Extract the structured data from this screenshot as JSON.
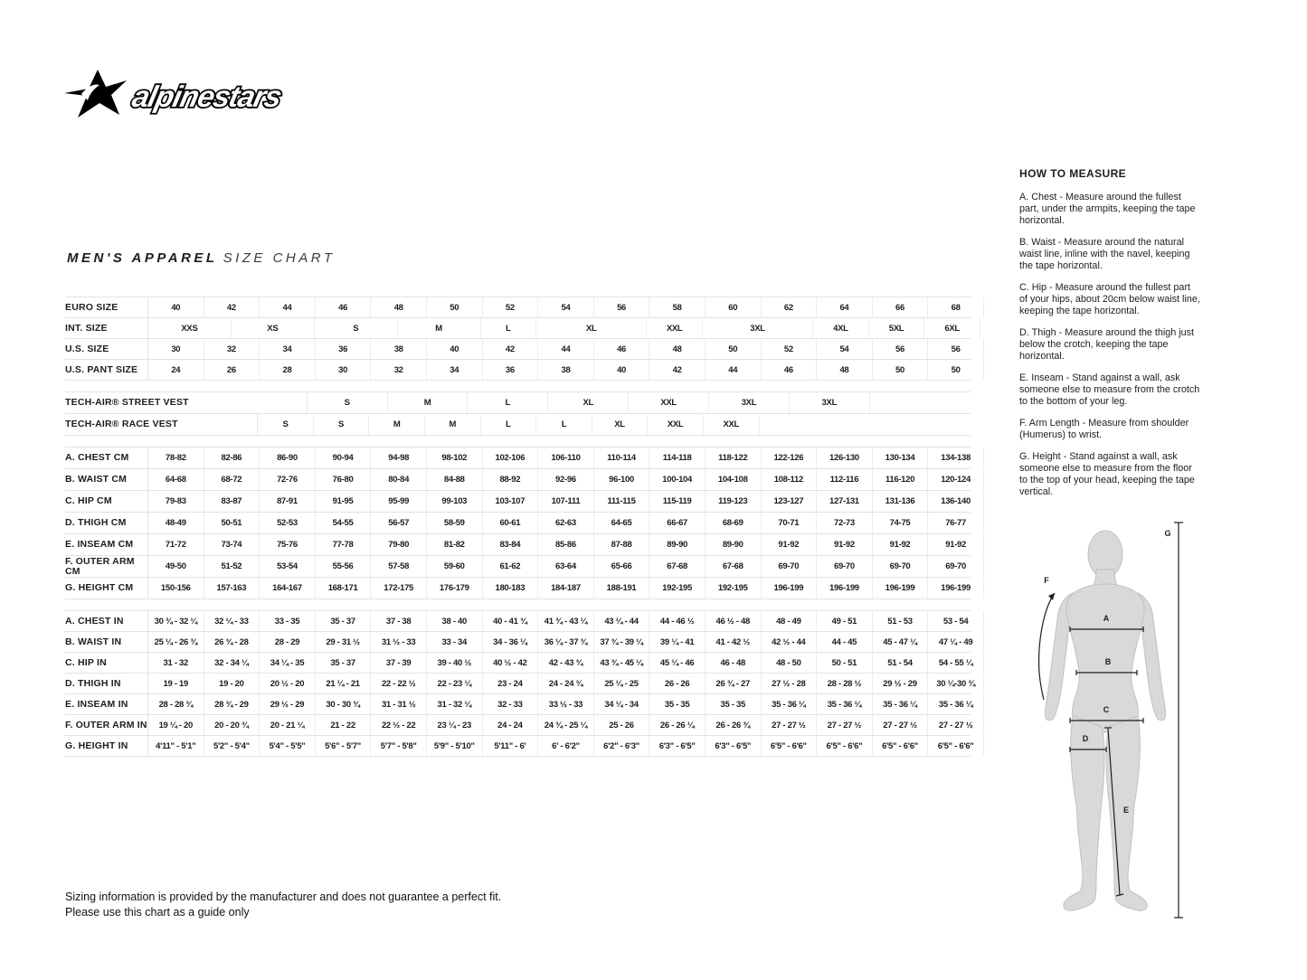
{
  "brand": {
    "name": "alpinestars"
  },
  "title": {
    "primary": "MEN'S APPAREL",
    "secondary": "SIZE CHART"
  },
  "size_table": {
    "groups": [
      {
        "rows": [
          {
            "label": "EURO SIZE",
            "cells": [
              "40",
              "42",
              "44",
              "46",
              "48",
              "50",
              "52",
              "54",
              "56",
              "58",
              "60",
              "62",
              "64",
              "66",
              "68"
            ]
          },
          {
            "label": "INT. SIZE",
            "cells": [
              {
                "t": "XXS",
                "span": 1.5
              },
              {
                "t": "XS",
                "span": 1.5
              },
              {
                "t": "S",
                "span": 1.5
              },
              {
                "t": "M",
                "span": 1.5
              },
              {
                "t": "L",
                "span": 1
              },
              {
                "t": "XL",
                "span": 2
              },
              {
                "t": "XXL",
                "span": 1
              },
              {
                "t": "3XL",
                "span": 2
              },
              {
                "t": "4XL",
                "span": 1
              },
              {
                "t": "5XL",
                "span": 1
              },
              {
                "t": "6XL",
                "span": 1
              }
            ]
          },
          {
            "label": "U.S. SIZE",
            "cells": [
              "30",
              "32",
              "34",
              "36",
              "38",
              "40",
              "42",
              "44",
              "46",
              "48",
              "50",
              "52",
              "54",
              "56",
              "56"
            ]
          },
          {
            "label": "U.S. PANT SIZE",
            "cells": [
              "24",
              "26",
              "28",
              "30",
              "32",
              "34",
              "36",
              "38",
              "40",
              "42",
              "44",
              "46",
              "48",
              "50",
              "50"
            ]
          }
        ]
      },
      {
        "rows": [
          {
            "label": "TECH-AIR® STREET VEST",
            "offset": 2.9,
            "span": 1.45,
            "cells": [
              "S",
              "M",
              "L",
              "XL",
              "XXL",
              "3XL",
              "3XL"
            ]
          },
          {
            "label": "TECH-AIR® RACE VEST",
            "offset": 2,
            "cells": [
              "S",
              "S",
              "M",
              "M",
              "L",
              "L",
              "XL",
              "XXL",
              "XXL"
            ]
          }
        ]
      },
      {
        "rows": [
          {
            "label": "A. CHEST CM",
            "cells": [
              "78-82",
              "82-86",
              "86-90",
              "90-94",
              "94-98",
              "98-102",
              "102-106",
              "106-110",
              "110-114",
              "114-118",
              "118-122",
              "122-126",
              "126-130",
              "130-134",
              "134-138"
            ]
          },
          {
            "label": "B. WAIST CM",
            "cells": [
              "64-68",
              "68-72",
              "72-76",
              "76-80",
              "80-84",
              "84-88",
              "88-92",
              "92-96",
              "96-100",
              "100-104",
              "104-108",
              "108-112",
              "112-116",
              "116-120",
              "120-124"
            ]
          },
          {
            "label": "C. HIP CM",
            "cells": [
              "79-83",
              "83-87",
              "87-91",
              "91-95",
              "95-99",
              "99-103",
              "103-107",
              "107-111",
              "111-115",
              "115-119",
              "119-123",
              "123-127",
              "127-131",
              "131-136",
              "136-140"
            ]
          },
          {
            "label": "D. THIGH CM",
            "cells": [
              "48-49",
              "50-51",
              "52-53",
              "54-55",
              "56-57",
              "58-59",
              "60-61",
              "62-63",
              "64-65",
              "66-67",
              "68-69",
              "70-71",
              "72-73",
              "74-75",
              "76-77"
            ]
          },
          {
            "label": "E. INSEAM CM",
            "cells": [
              "71-72",
              "73-74",
              "75-76",
              "77-78",
              "79-80",
              "81-82",
              "83-84",
              "85-86",
              "87-88",
              "89-90",
              "89-90",
              "91-92",
              "91-92",
              "91-92",
              "91-92"
            ]
          },
          {
            "label": "F. OUTER ARM CM",
            "cells": [
              "49-50",
              "51-52",
              "53-54",
              "55-56",
              "57-58",
              "59-60",
              "61-62",
              "63-64",
              "65-66",
              "67-68",
              "67-68",
              "69-70",
              "69-70",
              "69-70",
              "69-70"
            ]
          },
          {
            "label": "G. HEIGHT CM",
            "cells": [
              "150-156",
              "157-163",
              "164-167",
              "168-171",
              "172-175",
              "176-179",
              "180-183",
              "184-187",
              "188-191",
              "192-195",
              "192-195",
              "196-199",
              "196-199",
              "196-199",
              "196-199"
            ]
          }
        ]
      },
      {
        "rows": [
          {
            "label": "A. CHEST IN",
            "cells": [
              "30 ¾ - 32 ¼",
              "32 ¼ - 33",
              "33 - 35",
              "35 - 37",
              "37 - 38",
              "38 - 40",
              "40 - 41 ¾",
              "41 ¾ - 43 ¼",
              "43 ¼ - 44",
              "44 - 46 ½",
              "46 ½ - 48",
              "48 - 49",
              "49 - 51",
              "51 - 53",
              "53 - 54"
            ]
          },
          {
            "label": "B. WAIST IN",
            "cells": [
              "25 ¼ - 26 ¾",
              "26 ¾ - 28",
              "28 - 29",
              "29 - 31 ½",
              "31 ½ - 33",
              "33 - 34",
              "34 - 36 ¼",
              "36 ¼ - 37 ¾",
              "37 ¾ - 39 ¼",
              "39 ¼ - 41",
              "41 - 42 ½",
              "42 ½ - 44",
              "44 - 45",
              "45 - 47 ¼",
              "47 ¼ - 49"
            ]
          },
          {
            "label": "C. HIP IN",
            "cells": [
              "31 - 32",
              "32 - 34 ¼",
              "34 ¼ - 35",
              "35 - 37",
              "37 - 39",
              "39 - 40 ½",
              "40 ½ - 42",
              "42 - 43 ¾",
              "43 ¾ - 45 ¼",
              "45 ¼ - 46",
              "46 - 48",
              "48 - 50",
              "50 - 51",
              "51 - 54",
              "54 - 55 ¼"
            ]
          },
          {
            "label": "D. THIGH IN",
            "cells": [
              "19 - 19",
              "19 - 20",
              "20 ½ - 20",
              "21 ¼ - 21",
              "22 - 22 ½",
              "22 - 23 ¼",
              "23 - 24",
              "24 - 24 ¾",
              "25 ¼ - 25",
              "26 - 26",
              "26 ¾ - 27",
              "27 ½ - 28",
              "28 - 28 ½",
              "29 ½ - 29",
              "30 ¼-30 ¾"
            ]
          },
          {
            "label": "E. INSEAM IN",
            "cells": [
              "28 - 28 ¾",
              "28 ¾ - 29",
              "29 ½ - 29",
              "30 - 30 ¾",
              "31 - 31 ½",
              "31 - 32 ¼",
              "32 - 33",
              "33 ½ - 33",
              "34 ¼ - 34",
              "35 - 35",
              "35 - 35",
              "35 - 36 ¼",
              "35 - 36 ¼",
              "35 - 36 ¼",
              "35 - 36 ¼"
            ]
          },
          {
            "label": "F. OUTER ARM IN",
            "cells": [
              "19 ¼ - 20",
              "20 - 20 ¾",
              "20 - 21 ¼",
              "21 - 22",
              "22 ½ - 22",
              "23 ¼ - 23",
              "24 - 24",
              "24 ¾ - 25 ¼",
              "25 - 26",
              "26 - 26 ¼",
              "26 - 26 ¾",
              "27 - 27 ½",
              "27 - 27 ½",
              "27 - 27 ½",
              "27 - 27 ½"
            ]
          },
          {
            "label": "G. HEIGHT IN",
            "cells": [
              "4'11\" - 5'1\"",
              "5'2\" - 5'4\"",
              "5'4\" - 5'5\"",
              "5'6\" - 5'7\"",
              "5'7\" - 5'8\"",
              "5'9\" - 5'10\"",
              "5'11\" - 6'",
              "6' - 6'2\"",
              "6'2\" - 6'3\"",
              "6'3\" - 6'5\"",
              "6'3\" - 6'5\"",
              "6'5\" - 6'6\"",
              "6'5\" - 6'6\"",
              "6'5\" - 6'6\"",
              "6'5\" - 6'6\""
            ]
          }
        ]
      }
    ]
  },
  "how_to_measure": {
    "title": "HOW TO MEASURE",
    "items": [
      "A. Chest - Measure around the fullest part, under the armpits, keeping the tape horizontal.",
      "B. Waist - Measure around the natural waist line, inline with the navel, keeping the tape horizontal.",
      "C. Hip - Measure around the fullest part of your hips, about 20cm below waist line, keeping the tape horizontal.",
      "D. Thigh - Measure around the thigh just below the crotch, keeping the tape horizontal.",
      "E. Inseam - Stand against a wall, ask someone else to measure from the crotch to the bottom of your leg.",
      "F. Arm Length - Measure from shoulder (Humerus) to wrist.",
      "G. Height - Stand against a wall, ask someone else to measure from the floor to the top of your head, keeping the tape vertical."
    ]
  },
  "diagram": {
    "labels": [
      "A",
      "B",
      "C",
      "D",
      "E",
      "F",
      "G"
    ]
  },
  "footer": {
    "line1": "Sizing information is provided by the manufacturer and does not guarantee a perfect fit.",
    "line2": "Please use this chart as a guide only"
  }
}
